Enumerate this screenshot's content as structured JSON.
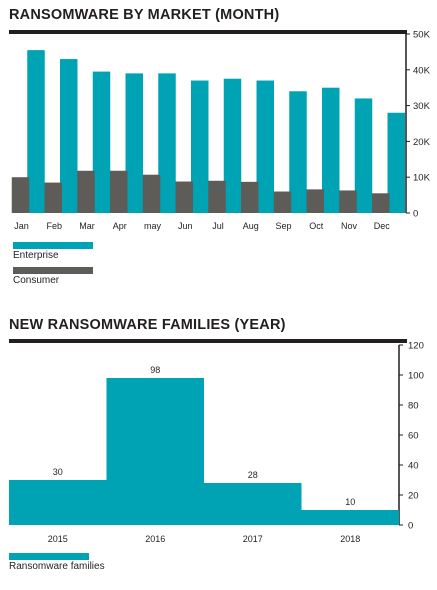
{
  "colors": {
    "enterprise": "#00a3b4",
    "consumer": "#5e5c59",
    "families": "#00a3b4",
    "text": "#231f20",
    "axis": "#231f20"
  },
  "chart_data": [
    {
      "type": "bar",
      "title": "RANSOMWARE BY MARKET (MONTH)",
      "categories": [
        "Jan",
        "Feb",
        "Mar",
        "Apr",
        "may",
        "Jun",
        "Jul",
        "Aug",
        "Sep",
        "Oct",
        "Nov",
        "Dec"
      ],
      "series": [
        {
          "name": "Enterprise",
          "values": [
            45500,
            43000,
            39500,
            39000,
            39000,
            37000,
            37500,
            37000,
            34000,
            35000,
            32000,
            28000
          ]
        },
        {
          "name": "Consumer",
          "values": [
            10000,
            8500,
            11800,
            11800,
            10700,
            8800,
            9000,
            8700,
            6000,
            6600,
            6300,
            5500
          ]
        }
      ],
      "y_ticks": [
        "50K",
        "40K",
        "30K",
        "20K",
        "10K",
        "0"
      ],
      "y_tick_values": [
        50000,
        40000,
        30000,
        20000,
        10000,
        0
      ],
      "ylim": [
        0,
        50000
      ],
      "grid": false,
      "legend_position": "bottom-left"
    },
    {
      "type": "bar",
      "title": "NEW RANSOMWARE FAMILIES (YEAR)",
      "categories": [
        "2015",
        "2016",
        "2017",
        "2018"
      ],
      "series": [
        {
          "name": "Ransomware families",
          "values": [
            30,
            98,
            28,
            10
          ]
        }
      ],
      "data_labels": [
        "30",
        "98",
        "28",
        "10"
      ],
      "y_ticks": [
        "120",
        "100",
        "80",
        "60",
        "40",
        "20",
        "0"
      ],
      "y_tick_values": [
        120,
        100,
        80,
        60,
        40,
        20,
        0
      ],
      "ylim": [
        0,
        120
      ],
      "grid": false,
      "legend_position": "bottom-left"
    }
  ]
}
